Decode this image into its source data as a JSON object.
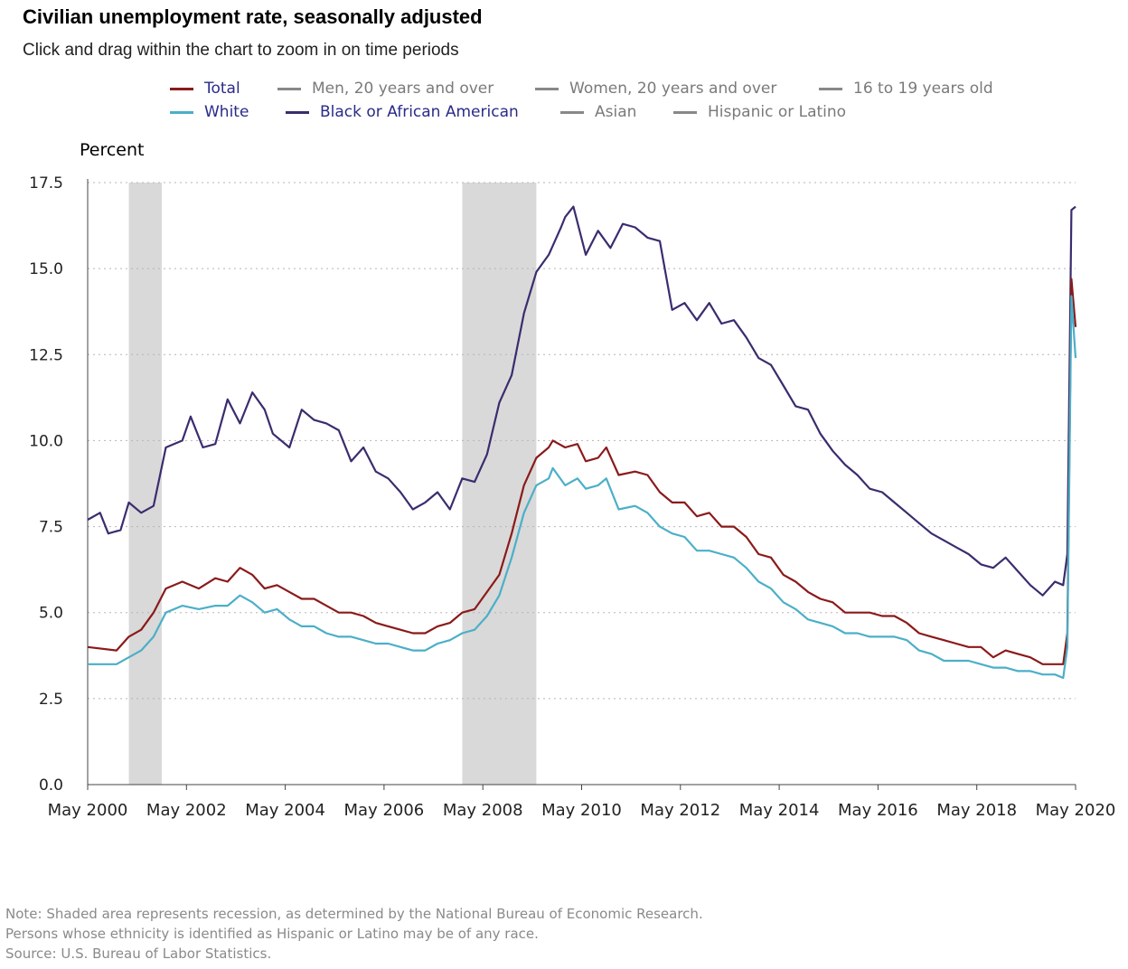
{
  "title": "Civilian unemployment rate, seasonally adjusted",
  "subtitle": "Click and drag within the chart to zoom in on time periods",
  "legend": [
    {
      "label": "Total",
      "color": "#8b1a1a",
      "active": true
    },
    {
      "label": "Men, 20 years and over",
      "color": "#888888",
      "active": false
    },
    {
      "label": "Women, 20 years and over",
      "color": "#888888",
      "active": false
    },
    {
      "label": "16 to 19 years old",
      "color": "#888888",
      "active": false
    },
    {
      "label": "White",
      "color": "#4bafc8",
      "active": true
    },
    {
      "label": "Black or African American",
      "color": "#3b2c6e",
      "active": true
    },
    {
      "label": "Asian",
      "color": "#888888",
      "active": false
    },
    {
      "label": "Hispanic or Latino",
      "color": "#888888",
      "active": false
    }
  ],
  "notes": [
    "Note: Shaded area represents recession, as determined by the National Bureau of Economic Research.",
    "Persons whose ethnicity is identified as Hispanic or Latino may be of any race.",
    "Source: U.S. Bureau of Labor Statistics."
  ],
  "chart_data": {
    "type": "line",
    "ylabel": "Percent",
    "xlabel": "",
    "ylim": [
      0,
      17.5
    ],
    "yticks": [
      0.0,
      2.5,
      5.0,
      7.5,
      10.0,
      12.5,
      15.0,
      17.5
    ],
    "ytick_labels": [
      "0.0",
      "2.5",
      "5.0",
      "7.5",
      "10.0",
      "12.5",
      "15.0",
      "17.5"
    ],
    "xlim": [
      "2000-05",
      "2020-05"
    ],
    "xtick_labels": [
      "May 2000",
      "May 2002",
      "May 2004",
      "May 2006",
      "May 2008",
      "May 2010",
      "May 2012",
      "May 2014",
      "May 2016",
      "May 2018",
      "May 2020"
    ],
    "xticks": [
      "2000-05",
      "2002-05",
      "2004-05",
      "2006-05",
      "2008-05",
      "2010-05",
      "2012-05",
      "2014-05",
      "2016-05",
      "2018-05",
      "2020-05"
    ],
    "grid": "horizontal dotted",
    "legend_position": "top",
    "recessions": [
      [
        "2001-03",
        "2001-11"
      ],
      [
        "2007-12",
        "2009-06"
      ]
    ],
    "series": [
      {
        "name": "Total",
        "color": "#8b1a1a",
        "points": [
          [
            "2000-05",
            4.0
          ],
          [
            "2000-12",
            3.9
          ],
          [
            "2001-03",
            4.3
          ],
          [
            "2001-06",
            4.5
          ],
          [
            "2001-09",
            5.0
          ],
          [
            "2001-12",
            5.7
          ],
          [
            "2002-04",
            5.9
          ],
          [
            "2002-08",
            5.7
          ],
          [
            "2002-12",
            6.0
          ],
          [
            "2003-03",
            5.9
          ],
          [
            "2003-06",
            6.3
          ],
          [
            "2003-09",
            6.1
          ],
          [
            "2003-12",
            5.7
          ],
          [
            "2004-03",
            5.8
          ],
          [
            "2004-06",
            5.6
          ],
          [
            "2004-09",
            5.4
          ],
          [
            "2004-12",
            5.4
          ],
          [
            "2005-03",
            5.2
          ],
          [
            "2005-06",
            5.0
          ],
          [
            "2005-09",
            5.0
          ],
          [
            "2005-12",
            4.9
          ],
          [
            "2006-03",
            4.7
          ],
          [
            "2006-06",
            4.6
          ],
          [
            "2006-09",
            4.5
          ],
          [
            "2006-12",
            4.4
          ],
          [
            "2007-03",
            4.4
          ],
          [
            "2007-06",
            4.6
          ],
          [
            "2007-09",
            4.7
          ],
          [
            "2007-12",
            5.0
          ],
          [
            "2008-03",
            5.1
          ],
          [
            "2008-06",
            5.6
          ],
          [
            "2008-09",
            6.1
          ],
          [
            "2008-12",
            7.3
          ],
          [
            "2009-03",
            8.7
          ],
          [
            "2009-06",
            9.5
          ],
          [
            "2009-09",
            9.8
          ],
          [
            "2009-10",
            10.0
          ],
          [
            "2010-01",
            9.8
          ],
          [
            "2010-04",
            9.9
          ],
          [
            "2010-06",
            9.4
          ],
          [
            "2010-09",
            9.5
          ],
          [
            "2010-11",
            9.8
          ],
          [
            "2011-02",
            9.0
          ],
          [
            "2011-06",
            9.1
          ],
          [
            "2011-09",
            9.0
          ],
          [
            "2011-12",
            8.5
          ],
          [
            "2012-03",
            8.2
          ],
          [
            "2012-06",
            8.2
          ],
          [
            "2012-09",
            7.8
          ],
          [
            "2012-12",
            7.9
          ],
          [
            "2013-03",
            7.5
          ],
          [
            "2013-06",
            7.5
          ],
          [
            "2013-09",
            7.2
          ],
          [
            "2013-12",
            6.7
          ],
          [
            "2014-03",
            6.6
          ],
          [
            "2014-06",
            6.1
          ],
          [
            "2014-09",
            5.9
          ],
          [
            "2014-12",
            5.6
          ],
          [
            "2015-03",
            5.4
          ],
          [
            "2015-06",
            5.3
          ],
          [
            "2015-09",
            5.0
          ],
          [
            "2015-12",
            5.0
          ],
          [
            "2016-03",
            5.0
          ],
          [
            "2016-06",
            4.9
          ],
          [
            "2016-09",
            4.9
          ],
          [
            "2016-12",
            4.7
          ],
          [
            "2017-03",
            4.4
          ],
          [
            "2017-06",
            4.3
          ],
          [
            "2017-09",
            4.2
          ],
          [
            "2017-12",
            4.1
          ],
          [
            "2018-03",
            4.0
          ],
          [
            "2018-06",
            4.0
          ],
          [
            "2018-09",
            3.7
          ],
          [
            "2018-12",
            3.9
          ],
          [
            "2019-03",
            3.8
          ],
          [
            "2019-06",
            3.7
          ],
          [
            "2019-09",
            3.5
          ],
          [
            "2019-12",
            3.5
          ],
          [
            "2020-02",
            3.5
          ],
          [
            "2020-03",
            4.4
          ],
          [
            "2020-04",
            14.7
          ],
          [
            "2020-05",
            13.3
          ]
        ]
      },
      {
        "name": "White",
        "color": "#4bafc8",
        "points": [
          [
            "2000-05",
            3.5
          ],
          [
            "2000-12",
            3.5
          ],
          [
            "2001-03",
            3.7
          ],
          [
            "2001-06",
            3.9
          ],
          [
            "2001-09",
            4.3
          ],
          [
            "2001-12",
            5.0
          ],
          [
            "2002-04",
            5.2
          ],
          [
            "2002-08",
            5.1
          ],
          [
            "2002-12",
            5.2
          ],
          [
            "2003-03",
            5.2
          ],
          [
            "2003-06",
            5.5
          ],
          [
            "2003-09",
            5.3
          ],
          [
            "2003-12",
            5.0
          ],
          [
            "2004-03",
            5.1
          ],
          [
            "2004-06",
            4.8
          ],
          [
            "2004-09",
            4.6
          ],
          [
            "2004-12",
            4.6
          ],
          [
            "2005-03",
            4.4
          ],
          [
            "2005-06",
            4.3
          ],
          [
            "2005-09",
            4.3
          ],
          [
            "2005-12",
            4.2
          ],
          [
            "2006-03",
            4.1
          ],
          [
            "2006-06",
            4.1
          ],
          [
            "2006-09",
            4.0
          ],
          [
            "2006-12",
            3.9
          ],
          [
            "2007-03",
            3.9
          ],
          [
            "2007-06",
            4.1
          ],
          [
            "2007-09",
            4.2
          ],
          [
            "2007-12",
            4.4
          ],
          [
            "2008-03",
            4.5
          ],
          [
            "2008-06",
            4.9
          ],
          [
            "2008-09",
            5.5
          ],
          [
            "2008-12",
            6.6
          ],
          [
            "2009-03",
            7.9
          ],
          [
            "2009-06",
            8.7
          ],
          [
            "2009-09",
            8.9
          ],
          [
            "2009-10",
            9.2
          ],
          [
            "2010-01",
            8.7
          ],
          [
            "2010-04",
            8.9
          ],
          [
            "2010-06",
            8.6
          ],
          [
            "2010-09",
            8.7
          ],
          [
            "2010-11",
            8.9
          ],
          [
            "2011-02",
            8.0
          ],
          [
            "2011-06",
            8.1
          ],
          [
            "2011-09",
            7.9
          ],
          [
            "2011-12",
            7.5
          ],
          [
            "2012-03",
            7.3
          ],
          [
            "2012-06",
            7.2
          ],
          [
            "2012-09",
            6.8
          ],
          [
            "2012-12",
            6.8
          ],
          [
            "2013-03",
            6.7
          ],
          [
            "2013-06",
            6.6
          ],
          [
            "2013-09",
            6.3
          ],
          [
            "2013-12",
            5.9
          ],
          [
            "2014-03",
            5.7
          ],
          [
            "2014-06",
            5.3
          ],
          [
            "2014-09",
            5.1
          ],
          [
            "2014-12",
            4.8
          ],
          [
            "2015-03",
            4.7
          ],
          [
            "2015-06",
            4.6
          ],
          [
            "2015-09",
            4.4
          ],
          [
            "2015-12",
            4.4
          ],
          [
            "2016-03",
            4.3
          ],
          [
            "2016-06",
            4.3
          ],
          [
            "2016-09",
            4.3
          ],
          [
            "2016-12",
            4.2
          ],
          [
            "2017-03",
            3.9
          ],
          [
            "2017-06",
            3.8
          ],
          [
            "2017-09",
            3.6
          ],
          [
            "2017-12",
            3.6
          ],
          [
            "2018-03",
            3.6
          ],
          [
            "2018-06",
            3.5
          ],
          [
            "2018-09",
            3.4
          ],
          [
            "2018-12",
            3.4
          ],
          [
            "2019-03",
            3.3
          ],
          [
            "2019-06",
            3.3
          ],
          [
            "2019-09",
            3.2
          ],
          [
            "2019-12",
            3.2
          ],
          [
            "2020-02",
            3.1
          ],
          [
            "2020-03",
            4.0
          ],
          [
            "2020-04",
            14.2
          ],
          [
            "2020-05",
            12.4
          ]
        ]
      },
      {
        "name": "Black or African American",
        "color": "#3b2c6e",
        "points": [
          [
            "2000-05",
            7.7
          ],
          [
            "2000-08",
            7.9
          ],
          [
            "2000-10",
            7.3
          ],
          [
            "2001-01",
            7.4
          ],
          [
            "2001-03",
            8.2
          ],
          [
            "2001-06",
            7.9
          ],
          [
            "2001-09",
            8.1
          ],
          [
            "2001-12",
            9.8
          ],
          [
            "2002-04",
            10.0
          ],
          [
            "2002-06",
            10.7
          ],
          [
            "2002-09",
            9.8
          ],
          [
            "2002-12",
            9.9
          ],
          [
            "2003-03",
            11.2
          ],
          [
            "2003-06",
            10.5
          ],
          [
            "2003-09",
            11.4
          ],
          [
            "2003-12",
            10.9
          ],
          [
            "2004-02",
            10.2
          ],
          [
            "2004-06",
            9.8
          ],
          [
            "2004-09",
            10.9
          ],
          [
            "2004-12",
            10.6
          ],
          [
            "2005-03",
            10.5
          ],
          [
            "2005-06",
            10.3
          ],
          [
            "2005-09",
            9.4
          ],
          [
            "2005-12",
            9.8
          ],
          [
            "2006-03",
            9.1
          ],
          [
            "2006-06",
            8.9
          ],
          [
            "2006-09",
            8.5
          ],
          [
            "2006-12",
            8.0
          ],
          [
            "2007-03",
            8.2
          ],
          [
            "2007-06",
            8.5
          ],
          [
            "2007-09",
            8.0
          ],
          [
            "2007-12",
            8.9
          ],
          [
            "2008-03",
            8.8
          ],
          [
            "2008-06",
            9.6
          ],
          [
            "2008-09",
            11.1
          ],
          [
            "2008-12",
            11.9
          ],
          [
            "2009-03",
            13.7
          ],
          [
            "2009-06",
            14.9
          ],
          [
            "2009-09",
            15.4
          ],
          [
            "2009-12",
            16.2
          ],
          [
            "2010-01",
            16.5
          ],
          [
            "2010-03",
            16.8
          ],
          [
            "2010-06",
            15.4
          ],
          [
            "2010-09",
            16.1
          ],
          [
            "2010-12",
            15.6
          ],
          [
            "2011-03",
            16.3
          ],
          [
            "2011-06",
            16.2
          ],
          [
            "2011-09",
            15.9
          ],
          [
            "2011-12",
            15.8
          ],
          [
            "2012-03",
            13.8
          ],
          [
            "2012-06",
            14.0
          ],
          [
            "2012-09",
            13.5
          ],
          [
            "2012-12",
            14.0
          ],
          [
            "2013-03",
            13.4
          ],
          [
            "2013-06",
            13.5
          ],
          [
            "2013-09",
            13.0
          ],
          [
            "2013-12",
            12.4
          ],
          [
            "2014-03",
            12.2
          ],
          [
            "2014-06",
            11.6
          ],
          [
            "2014-09",
            11.0
          ],
          [
            "2014-12",
            10.9
          ],
          [
            "2015-03",
            10.2
          ],
          [
            "2015-06",
            9.7
          ],
          [
            "2015-09",
            9.3
          ],
          [
            "2015-12",
            9.0
          ],
          [
            "2016-03",
            8.6
          ],
          [
            "2016-06",
            8.5
          ],
          [
            "2016-09",
            8.2
          ],
          [
            "2016-12",
            7.9
          ],
          [
            "2017-03",
            7.6
          ],
          [
            "2017-06",
            7.3
          ],
          [
            "2017-09",
            7.1
          ],
          [
            "2017-12",
            6.9
          ],
          [
            "2018-03",
            6.7
          ],
          [
            "2018-06",
            6.4
          ],
          [
            "2018-09",
            6.3
          ],
          [
            "2018-12",
            6.6
          ],
          [
            "2019-03",
            6.2
          ],
          [
            "2019-06",
            5.8
          ],
          [
            "2019-09",
            5.5
          ],
          [
            "2019-12",
            5.9
          ],
          [
            "2020-02",
            5.8
          ],
          [
            "2020-03",
            6.7
          ],
          [
            "2020-04",
            16.7
          ],
          [
            "2020-05",
            16.8
          ]
        ]
      }
    ]
  }
}
